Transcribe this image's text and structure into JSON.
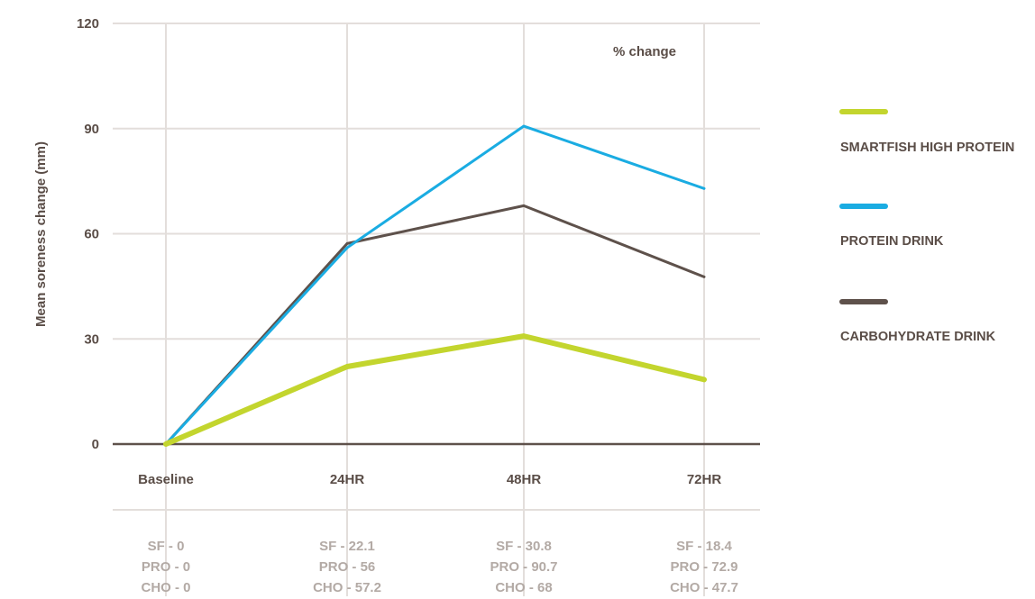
{
  "chart_data": {
    "type": "line",
    "categories": [
      "Baseline",
      "24HR",
      "48HR",
      "72HR"
    ],
    "ylabel": "Mean soreness change (mm)",
    "ylim": [
      0,
      120
    ],
    "yticks": [
      "0",
      "30",
      "60",
      "90",
      "120"
    ],
    "annotation": "% change",
    "grid": true,
    "legend_position": "right",
    "series": [
      {
        "name": "SMARTFISH HIGH PROTEIN",
        "color": "#c3d52e",
        "values": [
          0,
          22.1,
          30.8,
          18.4
        ]
      },
      {
        "name": "PROTEIN DRINK",
        "color": "#1aace2",
        "values": [
          0,
          56,
          90.7,
          72.9
        ]
      },
      {
        "name": "CARBOHYDRATE DRINK",
        "color": "#5e514b",
        "values": [
          0,
          57.2,
          68,
          47.7
        ]
      }
    ],
    "summary": [
      [
        "SF - 0",
        "PRO - 0",
        "CHO - 0"
      ],
      [
        "SF - 22.1",
        "PRO - 56",
        "CHO - 57.2"
      ],
      [
        "SF - 30.8",
        "PRO - 90.7",
        "CHO - 68"
      ],
      [
        "SF - 18.4",
        "PRO - 72.9",
        "CHO - 47.7"
      ]
    ]
  }
}
